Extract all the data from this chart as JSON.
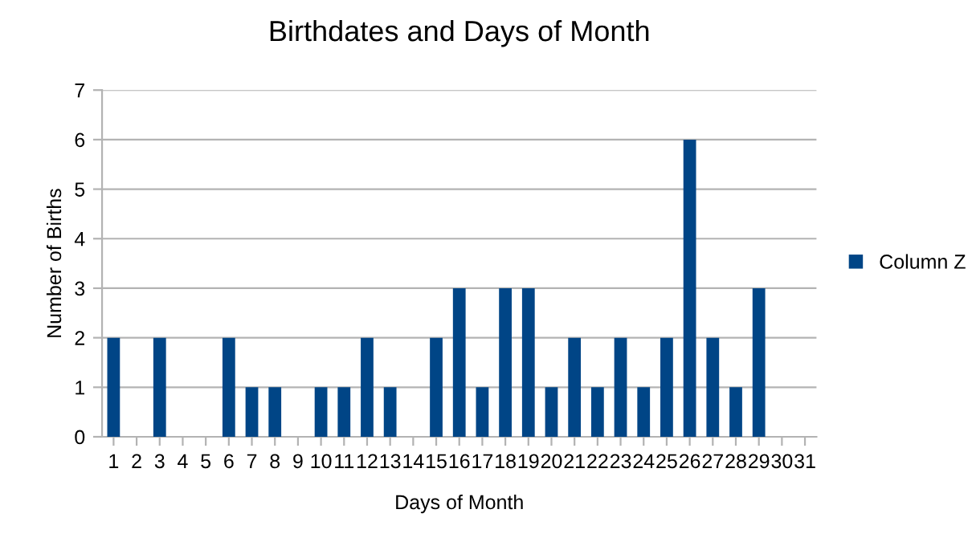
{
  "chart_data": {
    "type": "bar",
    "title": "Birthdates and Days of Month",
    "xlabel": "Days of Month",
    "ylabel": "Number of Births",
    "categories": [
      "1",
      "2",
      "3",
      "4",
      "5",
      "6",
      "7",
      "8",
      "9",
      "10",
      "11",
      "12",
      "13",
      "14",
      "15",
      "16",
      "17",
      "18",
      "19",
      "20",
      "21",
      "22",
      "23",
      "24",
      "25",
      "26",
      "27",
      "28",
      "29",
      "30",
      "31"
    ],
    "series": [
      {
        "name": "Column Z",
        "color": "#004586",
        "values": [
          2,
          0,
          2,
          0,
          0,
          2,
          1,
          1,
          0,
          1,
          1,
          2,
          1,
          0,
          2,
          3,
          1,
          3,
          3,
          1,
          2,
          1,
          2,
          1,
          2,
          6,
          2,
          1,
          3,
          0,
          0
        ]
      }
    ],
    "ylim": [
      0,
      7
    ],
    "yticks": [
      0,
      1,
      2,
      3,
      4,
      5,
      6,
      7
    ],
    "grid": "y",
    "legend": "right"
  }
}
